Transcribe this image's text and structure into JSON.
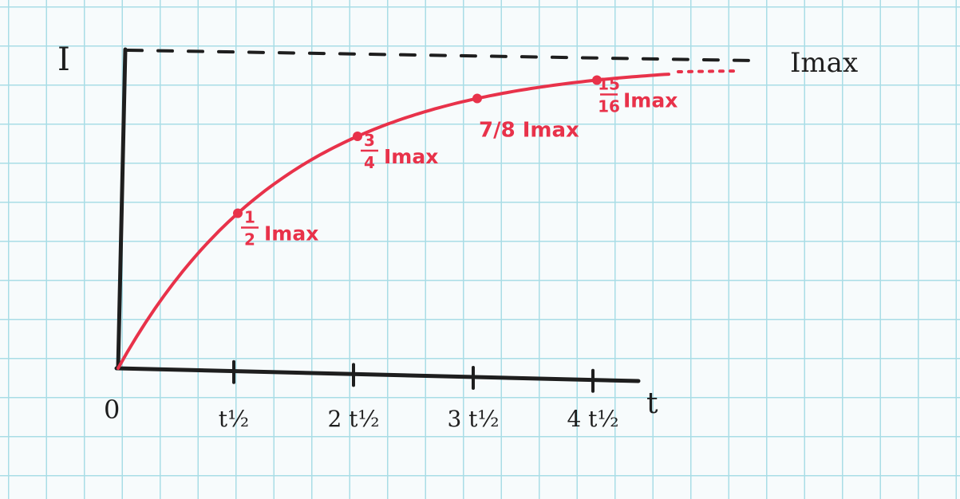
{
  "chart_data": {
    "type": "line",
    "ylabel": "I",
    "xlabel": "t",
    "origin_label": "0",
    "asymptote_label": "Imax",
    "x_ticks": [
      {
        "value": 1,
        "label": "t½"
      },
      {
        "value": 2,
        "label": "2 t½"
      },
      {
        "value": 3,
        "label": "3 t½"
      },
      {
        "value": 4,
        "label": "4 t½"
      }
    ],
    "xlim": [
      0,
      4.4
    ],
    "ylim": [
      0,
      1
    ],
    "curve": "I = Imax (1 − 2^(−t / t½))",
    "points": [
      {
        "x": 1,
        "y": 0.5,
        "frac_num": "1",
        "frac_den": "2",
        "label_unit": "Imax"
      },
      {
        "x": 2,
        "y": 0.75,
        "frac_num": "3",
        "frac_den": "4",
        "label_unit": "Imax"
      },
      {
        "x": 3,
        "y": 0.875,
        "inline_label": "7/8 Imax"
      },
      {
        "x": 4,
        "y": 0.9375,
        "frac_num": "15",
        "frac_den": "16",
        "label_unit": "Imax"
      }
    ],
    "colors": {
      "curve": "#e8324a",
      "axes": "#1e1e1e",
      "grid": "#a9dde6"
    }
  }
}
